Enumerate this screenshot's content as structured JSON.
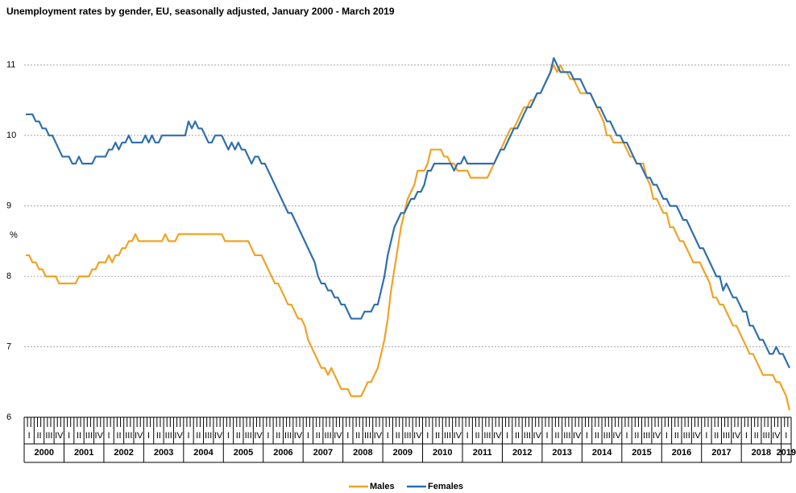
{
  "chart_data": {
    "type": "line",
    "title": "Unemployment rates by gender, EU, seasonally adjusted, January 2000 - March 2019",
    "y_label": "%",
    "years": [
      "2000",
      "2001",
      "2002",
      "2003",
      "2004",
      "2005",
      "2006",
      "2007",
      "2008",
      "2009",
      "2010",
      "2011",
      "2012",
      "2013",
      "2014",
      "2015",
      "2016",
      "2017",
      "2018",
      "2019"
    ],
    "categories": [
      null,
      "I",
      null,
      null,
      "II",
      null,
      null,
      "III",
      null,
      null,
      "IV",
      null,
      null,
      "I",
      null,
      null,
      "II",
      null,
      null,
      "III",
      null,
      null,
      "IV",
      null,
      null,
      "I",
      null,
      null,
      "II",
      null,
      null,
      "III",
      null,
      null,
      "IV",
      null,
      null,
      "I",
      null,
      null,
      "II",
      null,
      null,
      "III",
      null,
      null,
      "IV",
      null,
      null,
      "I",
      null,
      null,
      "II",
      null,
      null,
      "III",
      null,
      null,
      "IV",
      null,
      null,
      "I",
      null,
      null,
      "II",
      null,
      null,
      "III",
      null,
      null,
      "IV",
      null,
      null,
      "I",
      null,
      null,
      "II",
      null,
      null,
      "III",
      null,
      null,
      "IV",
      null,
      null,
      "I",
      null,
      null,
      "II",
      null,
      null,
      "III",
      null,
      null,
      "IV",
      null,
      null,
      "I",
      null,
      null,
      "II",
      null,
      null,
      "III",
      null,
      null,
      "IV",
      null,
      null,
      "I",
      null,
      null,
      "II",
      null,
      null,
      "III",
      null,
      null,
      "IV",
      null,
      null,
      "I",
      null,
      null,
      "II",
      null,
      null,
      "III",
      null,
      null,
      "IV",
      null,
      null,
      "I",
      null,
      null,
      "II",
      null,
      null,
      "III",
      null,
      null,
      "IV",
      null,
      null,
      "I",
      null,
      null,
      "II",
      null,
      null,
      "III",
      null,
      null,
      "IV",
      null,
      null,
      "I",
      null,
      null,
      "II",
      null,
      null,
      "III",
      null,
      null,
      "IV",
      null,
      null,
      "I",
      null,
      null,
      "II",
      null,
      null,
      "III",
      null,
      null,
      "IV",
      null,
      null,
      "I",
      null,
      null,
      "II",
      null,
      null,
      "III",
      null,
      null,
      "IV",
      null,
      null,
      "I",
      null,
      null,
      "II",
      null,
      null,
      "III",
      null,
      null,
      "IV",
      null,
      null,
      "I",
      null,
      null,
      "II",
      null,
      null,
      "III",
      null,
      null,
      "IV",
      null,
      null,
      "I",
      null,
      null,
      "II",
      null,
      null,
      "III",
      null,
      null,
      "IV",
      null,
      null,
      "I",
      null
    ],
    "series": [
      {
        "name": "Males",
        "color": "#f0a324",
        "values": [
          8.3,
          8.3,
          8.2,
          8.2,
          8.1,
          8.1,
          8.0,
          8.0,
          8.0,
          8.0,
          7.9,
          7.9,
          7.9,
          7.9,
          7.9,
          7.9,
          8.0,
          8.0,
          8.0,
          8.0,
          8.1,
          8.1,
          8.2,
          8.2,
          8.2,
          8.3,
          8.2,
          8.3,
          8.3,
          8.4,
          8.4,
          8.5,
          8.5,
          8.6,
          8.5,
          8.5,
          8.5,
          8.5,
          8.5,
          8.5,
          8.5,
          8.5,
          8.6,
          8.5,
          8.5,
          8.5,
          8.6,
          8.6,
          8.6,
          8.6,
          8.6,
          8.6,
          8.6,
          8.6,
          8.6,
          8.6,
          8.6,
          8.6,
          8.6,
          8.6,
          8.5,
          8.5,
          8.5,
          8.5,
          8.5,
          8.5,
          8.5,
          8.5,
          8.4,
          8.3,
          8.3,
          8.3,
          8.2,
          8.1,
          8.0,
          7.9,
          7.9,
          7.8,
          7.7,
          7.6,
          7.6,
          7.5,
          7.4,
          7.4,
          7.3,
          7.1,
          7.0,
          6.9,
          6.8,
          6.7,
          6.7,
          6.6,
          6.7,
          6.6,
          6.5,
          6.4,
          6.4,
          6.4,
          6.3,
          6.3,
          6.3,
          6.3,
          6.4,
          6.5,
          6.5,
          6.6,
          6.7,
          6.9,
          7.1,
          7.4,
          7.8,
          8.1,
          8.4,
          8.7,
          8.9,
          9.1,
          9.2,
          9.3,
          9.5,
          9.5,
          9.5,
          9.6,
          9.8,
          9.8,
          9.8,
          9.8,
          9.7,
          9.7,
          9.6,
          9.6,
          9.5,
          9.5,
          9.5,
          9.5,
          9.4,
          9.4,
          9.4,
          9.4,
          9.4,
          9.4,
          9.5,
          9.6,
          9.7,
          9.8,
          9.9,
          10.0,
          10.1,
          10.1,
          10.2,
          10.3,
          10.4,
          10.4,
          10.5,
          10.5,
          10.6,
          10.6,
          10.7,
          10.8,
          10.9,
          11.0,
          10.9,
          11.0,
          10.9,
          10.9,
          10.8,
          10.8,
          10.7,
          10.6,
          10.6,
          10.6,
          10.6,
          10.5,
          10.4,
          10.3,
          10.2,
          10.0,
          10.0,
          9.9,
          9.9,
          9.9,
          9.9,
          9.8,
          9.7,
          9.7,
          9.6,
          9.6,
          9.6,
          9.4,
          9.3,
          9.1,
          9.1,
          9.0,
          8.9,
          8.9,
          8.7,
          8.7,
          8.6,
          8.5,
          8.5,
          8.4,
          8.3,
          8.2,
          8.2,
          8.2,
          8.1,
          8.0,
          7.9,
          7.7,
          7.7,
          7.6,
          7.6,
          7.5,
          7.4,
          7.3,
          7.3,
          7.2,
          7.1,
          7.0,
          6.9,
          6.9,
          6.8,
          6.7,
          6.6,
          6.6,
          6.6,
          6.6,
          6.5,
          6.5,
          6.4,
          6.3,
          6.1
        ]
      },
      {
        "name": "Females",
        "color": "#2f6fad",
        "values": [
          10.3,
          10.3,
          10.3,
          10.2,
          10.2,
          10.1,
          10.1,
          10.0,
          10.0,
          9.9,
          9.8,
          9.7,
          9.7,
          9.7,
          9.6,
          9.6,
          9.7,
          9.6,
          9.6,
          9.6,
          9.6,
          9.7,
          9.7,
          9.7,
          9.7,
          9.8,
          9.8,
          9.9,
          9.8,
          9.9,
          9.9,
          10.0,
          9.9,
          9.9,
          9.9,
          9.9,
          10.0,
          9.9,
          10.0,
          9.9,
          9.9,
          10.0,
          10.0,
          10.0,
          10.0,
          10.0,
          10.0,
          10.0,
          10.0,
          10.2,
          10.1,
          10.2,
          10.1,
          10.1,
          10.0,
          9.9,
          9.9,
          10.0,
          10.0,
          10.0,
          9.9,
          9.8,
          9.9,
          9.8,
          9.9,
          9.8,
          9.8,
          9.7,
          9.6,
          9.7,
          9.7,
          9.6,
          9.6,
          9.5,
          9.4,
          9.3,
          9.2,
          9.1,
          9.0,
          8.9,
          8.9,
          8.8,
          8.7,
          8.6,
          8.5,
          8.4,
          8.3,
          8.2,
          8.0,
          7.9,
          7.9,
          7.8,
          7.8,
          7.7,
          7.7,
          7.6,
          7.6,
          7.5,
          7.4,
          7.4,
          7.4,
          7.4,
          7.5,
          7.5,
          7.5,
          7.6,
          7.6,
          7.8,
          8.0,
          8.3,
          8.5,
          8.7,
          8.8,
          8.9,
          8.9,
          9.0,
          9.1,
          9.1,
          9.2,
          9.2,
          9.3,
          9.5,
          9.5,
          9.6,
          9.6,
          9.6,
          9.6,
          9.6,
          9.6,
          9.5,
          9.6,
          9.6,
          9.7,
          9.6,
          9.6,
          9.6,
          9.6,
          9.6,
          9.6,
          9.6,
          9.6,
          9.6,
          9.7,
          9.8,
          9.8,
          9.9,
          10.0,
          10.1,
          10.1,
          10.2,
          10.3,
          10.4,
          10.4,
          10.5,
          10.6,
          10.6,
          10.7,
          10.8,
          10.9,
          11.1,
          11.0,
          10.9,
          10.9,
          10.9,
          10.9,
          10.8,
          10.8,
          10.8,
          10.7,
          10.6,
          10.6,
          10.5,
          10.4,
          10.4,
          10.3,
          10.2,
          10.2,
          10.1,
          10.0,
          10.0,
          9.9,
          9.9,
          9.8,
          9.7,
          9.6,
          9.6,
          9.5,
          9.4,
          9.4,
          9.3,
          9.3,
          9.2,
          9.1,
          9.1,
          9.0,
          9.0,
          9.0,
          8.9,
          8.8,
          8.8,
          8.7,
          8.6,
          8.5,
          8.4,
          8.4,
          8.3,
          8.2,
          8.1,
          8.0,
          8.0,
          7.8,
          7.9,
          7.8,
          7.7,
          7.7,
          7.6,
          7.5,
          7.5,
          7.3,
          7.3,
          7.2,
          7.1,
          7.1,
          7.0,
          6.9,
          6.9,
          7.0,
          6.9,
          6.9,
          6.8,
          6.7
        ]
      }
    ],
    "ylim": [
      6,
      11.5
    ],
    "yticks": [
      6,
      7,
      8,
      9,
      10,
      11
    ],
    "grid": true,
    "legend": "bottom"
  }
}
